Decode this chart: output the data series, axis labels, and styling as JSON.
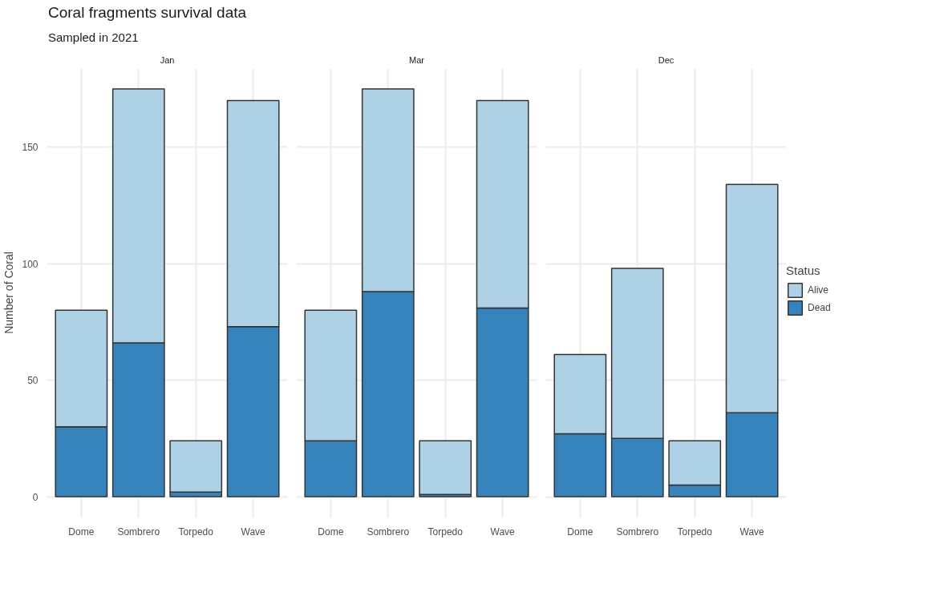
{
  "chart_data": [
    {
      "type": "bar",
      "title": "Jan",
      "annotations": [
        "Coral fragments survival data",
        "Sampled in 2021"
      ],
      "ylabel": "Number of Coral",
      "categories": [
        "Dome",
        "Sombrero",
        "Torpedo",
        "Wave"
      ],
      "stacked": true,
      "series": [
        {
          "color": "#3683bb",
          "values": [
            30,
            66,
            2,
            73
          ]
        },
        {
          "color": "#aed1e5",
          "values": [
            50,
            109,
            22,
            97
          ]
        }
      ],
      "ylim": [
        -8.75,
        183.75
      ],
      "yticks": [
        0,
        50,
        100,
        150
      ],
      "grid": true,
      "legend": false
    },
    {
      "type": "bar",
      "title": "Mar",
      "categories": [
        "Dome",
        "Sombrero",
        "Torpedo",
        "Wave"
      ],
      "stacked": true,
      "series": [
        {
          "color": "#3683bb",
          "values": [
            24,
            88,
            1,
            81
          ]
        },
        {
          "color": "#aed1e5",
          "values": [
            56,
            87,
            23,
            89
          ]
        }
      ],
      "ylim": [
        -8.75,
        183.75
      ],
      "yticks": [
        0,
        50,
        100,
        150
      ],
      "grid": true,
      "legend": false,
      "tick_labels": "x"
    },
    {
      "type": "bar",
      "title": "Dec",
      "legend_title": "Status",
      "categories": [
        "Dome",
        "Sombrero",
        "Torpedo",
        "Wave"
      ],
      "stacked": true,
      "series": [
        {
          "name": "Dead",
          "color": "#3683bb",
          "values": [
            27,
            25,
            5,
            36
          ]
        },
        {
          "name": "Alive",
          "color": "#aed1e5",
          "values": [
            34,
            73,
            19,
            98
          ]
        }
      ],
      "ylim": [
        -8.75,
        183.75
      ],
      "yticks": [
        0,
        50,
        100,
        150
      ],
      "grid": true,
      "legend": "right",
      "tick_labels": "x"
    }
  ]
}
